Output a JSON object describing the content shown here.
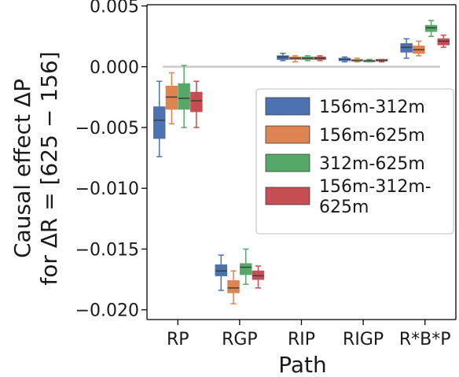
{
  "chart_data": {
    "type": "box",
    "title": "",
    "xlabel": "Path",
    "ylabel_line1": "Causal effect ΔP",
    "ylabel_line2": "for ΔR = [625 − 156]",
    "ylim": [
      -0.0208,
      0.0051
    ],
    "yticks": [
      0.005,
      0.0,
      -0.005,
      -0.01,
      -0.015,
      -0.02
    ],
    "ytick_labels": [
      "0.005",
      "0.000",
      "−0.005",
      "−0.010",
      "−0.015",
      "−0.020"
    ],
    "categories": [
      "RP",
      "RGP",
      "RIP",
      "RIGP",
      "R*B*P"
    ],
    "reference_line": 0.0,
    "legend_position": "center-right",
    "series": [
      {
        "name": "156m-312m",
        "color": "#4c72b0",
        "boxes": [
          {
            "whislo": -0.0074,
            "q1": -0.0059,
            "med": -0.0044,
            "q3": -0.0033,
            "whishi": -0.0012
          },
          {
            "whislo": -0.0184,
            "q1": -0.0172,
            "med": -0.0168,
            "q3": -0.0163,
            "whishi": -0.0155
          },
          {
            "whislo": 0.0005,
            "q1": 0.0006,
            "med": 0.0008,
            "q3": 0.0009,
            "whishi": 0.0011
          },
          {
            "whislo": 0.0004,
            "q1": 0.0005,
            "med": 0.0006,
            "q3": 0.0007,
            "whishi": 0.0008
          },
          {
            "whislo": 0.0007,
            "q1": 0.0012,
            "med": 0.0016,
            "q3": 0.0019,
            "whishi": 0.0023
          }
        ]
      },
      {
        "name": "156m-625m",
        "color": "#dd8452",
        "boxes": [
          {
            "whislo": -0.0047,
            "q1": -0.0035,
            "med": -0.0025,
            "q3": -0.0016,
            "whishi": -0.0005
          },
          {
            "whislo": -0.0195,
            "q1": -0.0186,
            "med": -0.0182,
            "q3": -0.0176,
            "whishi": -0.0168
          },
          {
            "whislo": 0.0004,
            "q1": 0.0006,
            "med": 0.0007,
            "q3": 0.0008,
            "whishi": 0.0009
          },
          {
            "whislo": 0.0004,
            "q1": 0.0005,
            "med": 0.0005,
            "q3": 0.0006,
            "whishi": 0.0007
          },
          {
            "whislo": 0.0009,
            "q1": 0.0011,
            "med": 0.0014,
            "q3": 0.0017,
            "whishi": 0.0021
          }
        ]
      },
      {
        "name": "312m-625m",
        "color": "#55a868",
        "boxes": [
          {
            "whislo": -0.005,
            "q1": -0.0035,
            "med": -0.0026,
            "q3": -0.0014,
            "whishi": 0.0001
          },
          {
            "whislo": -0.0179,
            "q1": -0.0171,
            "med": -0.0165,
            "q3": -0.0162,
            "whishi": -0.015
          },
          {
            "whislo": 0.0005,
            "q1": 0.0006,
            "med": 0.0007,
            "q3": 0.0008,
            "whishi": 0.0009
          },
          {
            "whislo": 0.0004,
            "q1": 0.0004,
            "med": 0.0005,
            "q3": 0.0005,
            "whishi": 0.0006
          },
          {
            "whislo": 0.0025,
            "q1": 0.0029,
            "med": 0.0032,
            "q3": 0.0034,
            "whishi": 0.0038
          }
        ]
      },
      {
        "name": "156m-312m-625m",
        "legend_lines": [
          "156m-312m-",
          "625m"
        ],
        "color": "#c44e52",
        "boxes": [
          {
            "whislo": -0.005,
            "q1": -0.0037,
            "med": -0.0028,
            "q3": -0.0021,
            "whishi": -0.0012
          },
          {
            "whislo": -0.0182,
            "q1": -0.0175,
            "med": -0.0172,
            "q3": -0.0168,
            "whishi": -0.0164
          },
          {
            "whislo": 0.0005,
            "q1": 0.0006,
            "med": 0.0007,
            "q3": 0.0008,
            "whishi": 0.0009
          },
          {
            "whislo": 0.0004,
            "q1": 0.0005,
            "med": 0.0005,
            "q3": 0.0006,
            "whishi": 0.0006
          },
          {
            "whislo": 0.0016,
            "q1": 0.0018,
            "med": 0.0021,
            "q3": 0.0023,
            "whishi": 0.0026
          }
        ]
      }
    ]
  }
}
